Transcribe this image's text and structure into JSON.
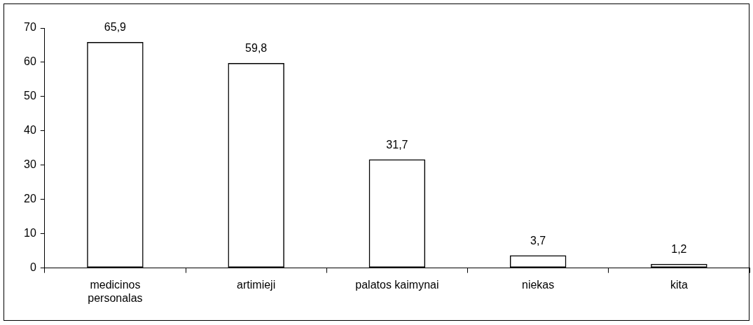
{
  "chart_data": {
    "type": "bar",
    "categories": [
      "medicinos personalas",
      "artimieji",
      "palatos kaimynai",
      "niekas",
      "kita"
    ],
    "values": [
      65.9,
      59.8,
      31.7,
      3.7,
      1.2
    ],
    "value_labels": [
      "65,9",
      "59,8",
      "31,7",
      "3,7",
      "1,2"
    ],
    "color": "#000000",
    "ylim": [
      0,
      70
    ],
    "yticks": [
      0,
      10,
      20,
      30,
      40,
      50,
      60,
      70
    ],
    "grid": false,
    "legend": false
  }
}
